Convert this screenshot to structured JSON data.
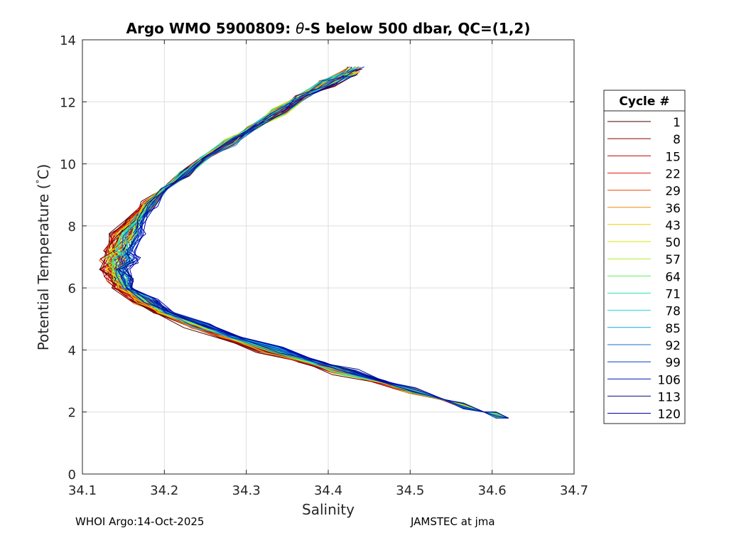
{
  "chart_data": {
    "type": "line",
    "title_prefix": "Argo WMO 5900809: ",
    "title_symbol": "θ",
    "title_suffix": "-S below 500 dbar,  QC=(1,2)",
    "xlabel": "Salinity",
    "ylabel_main": "Potential Temperature (",
    "ylabel_degree": "°",
    "ylabel_end": "C)",
    "xlim": [
      34.1,
      34.7
    ],
    "ylim": [
      0,
      14
    ],
    "xticks": [
      "34.1",
      "34.2",
      "34.3",
      "34.4",
      "34.5",
      "34.6",
      "34.7"
    ],
    "yticks": [
      "0",
      "2",
      "4",
      "6",
      "8",
      "10",
      "12",
      "14"
    ],
    "grid": true,
    "legend_title": "Cycle #",
    "legend_position": "outside-right",
    "legend_entries": [
      {
        "label": "1",
        "color": "#4d0000"
      },
      {
        "label": "8",
        "color": "#8c0000"
      },
      {
        "label": "15",
        "color": "#c40000"
      },
      {
        "label": "22",
        "color": "#e31a1c"
      },
      {
        "label": "29",
        "color": "#ef4a0a"
      },
      {
        "label": "36",
        "color": "#f58a00"
      },
      {
        "label": "43",
        "color": "#f0c800"
      },
      {
        "label": "50",
        "color": "#d6ea00"
      },
      {
        "label": "57",
        "color": "#a8f02a"
      },
      {
        "label": "64",
        "color": "#5fef5f"
      },
      {
        "label": "71",
        "color": "#2ae8a0"
      },
      {
        "label": "78",
        "color": "#16d8dc"
      },
      {
        "label": "85",
        "color": "#12a8e0"
      },
      {
        "label": "92",
        "color": "#1070c8"
      },
      {
        "label": "99",
        "color": "#0a3cc8"
      },
      {
        "label": "106",
        "color": "#0018b8"
      },
      {
        "label": "113",
        "color": "#00127a"
      },
      {
        "label": "120",
        "color": "#0000a8"
      }
    ],
    "representative_profile": {
      "temperature": [
        13.0,
        12.2,
        11.2,
        10.2,
        9.2,
        8.2,
        7.2,
        6.6,
        6.0,
        5.2,
        4.4,
        3.6,
        3.0,
        2.4,
        2.0,
        1.8
      ],
      "salinity": [
        34.43,
        34.37,
        34.31,
        34.25,
        34.2,
        34.165,
        34.145,
        34.14,
        34.15,
        34.2,
        34.28,
        34.38,
        34.46,
        34.54,
        34.59,
        34.62
      ]
    }
  },
  "footer": {
    "left": "WHOI Argo:14-Oct-2025",
    "right": "JAMSTEC at jma"
  }
}
